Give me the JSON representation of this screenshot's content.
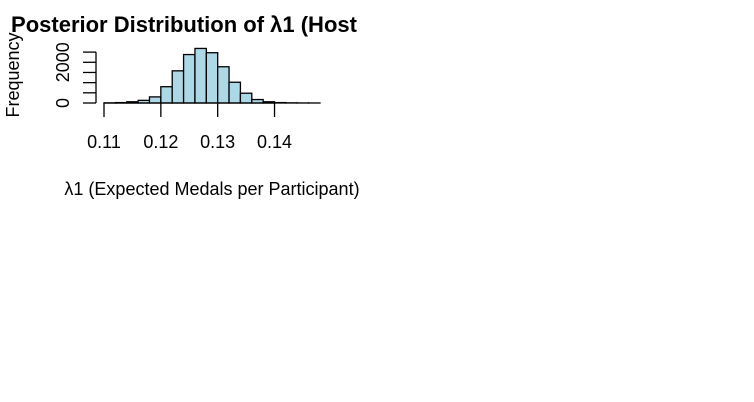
{
  "chart_data": {
    "type": "histogram",
    "title": "Posterior Distribution of λ1 (Host",
    "xlabel": "λ1 (Expected Medals per Participant)",
    "ylabel": "Frequency",
    "bar_fill": "#add8e6",
    "bar_stroke": "#000000",
    "bin_width": 0.002,
    "bins": [
      {
        "x0": 0.11,
        "x1": 0.112,
        "count": 5
      },
      {
        "x0": 0.112,
        "x1": 0.114,
        "count": 20
      },
      {
        "x0": 0.114,
        "x1": 0.116,
        "count": 60
      },
      {
        "x0": 0.116,
        "x1": 0.118,
        "count": 130
      },
      {
        "x0": 0.118,
        "x1": 0.12,
        "count": 300
      },
      {
        "x0": 0.12,
        "x1": 0.122,
        "count": 800
      },
      {
        "x0": 0.122,
        "x1": 0.124,
        "count": 1580
      },
      {
        "x0": 0.124,
        "x1": 0.126,
        "count": 2380
      },
      {
        "x0": 0.126,
        "x1": 0.128,
        "count": 2680
      },
      {
        "x0": 0.128,
        "x1": 0.13,
        "count": 2470
      },
      {
        "x0": 0.13,
        "x1": 0.132,
        "count": 1780
      },
      {
        "x0": 0.132,
        "x1": 0.134,
        "count": 1020
      },
      {
        "x0": 0.134,
        "x1": 0.136,
        "count": 480
      },
      {
        "x0": 0.136,
        "x1": 0.138,
        "count": 170
      },
      {
        "x0": 0.138,
        "x1": 0.14,
        "count": 60
      },
      {
        "x0": 0.14,
        "x1": 0.142,
        "count": 20
      },
      {
        "x0": 0.142,
        "x1": 0.144,
        "count": 8
      },
      {
        "x0": 0.144,
        "x1": 0.146,
        "count": 3
      },
      {
        "x0": 0.146,
        "x1": 0.148,
        "count": 1
      }
    ],
    "xlim": [
      0.11,
      0.148
    ],
    "ylim": [
      0,
      2800
    ],
    "x_ticks": [
      0.11,
      0.12,
      0.13,
      0.14
    ],
    "x_tick_labels": [
      "0.11",
      "0.12",
      "0.13",
      "0.14"
    ],
    "y_ticks": [
      0,
      500,
      1000,
      1500,
      2000,
      2500
    ],
    "y_tick_labels": [
      "0",
      "",
      "",
      "",
      "2000",
      ""
    ],
    "grid": false,
    "legend": "none"
  }
}
